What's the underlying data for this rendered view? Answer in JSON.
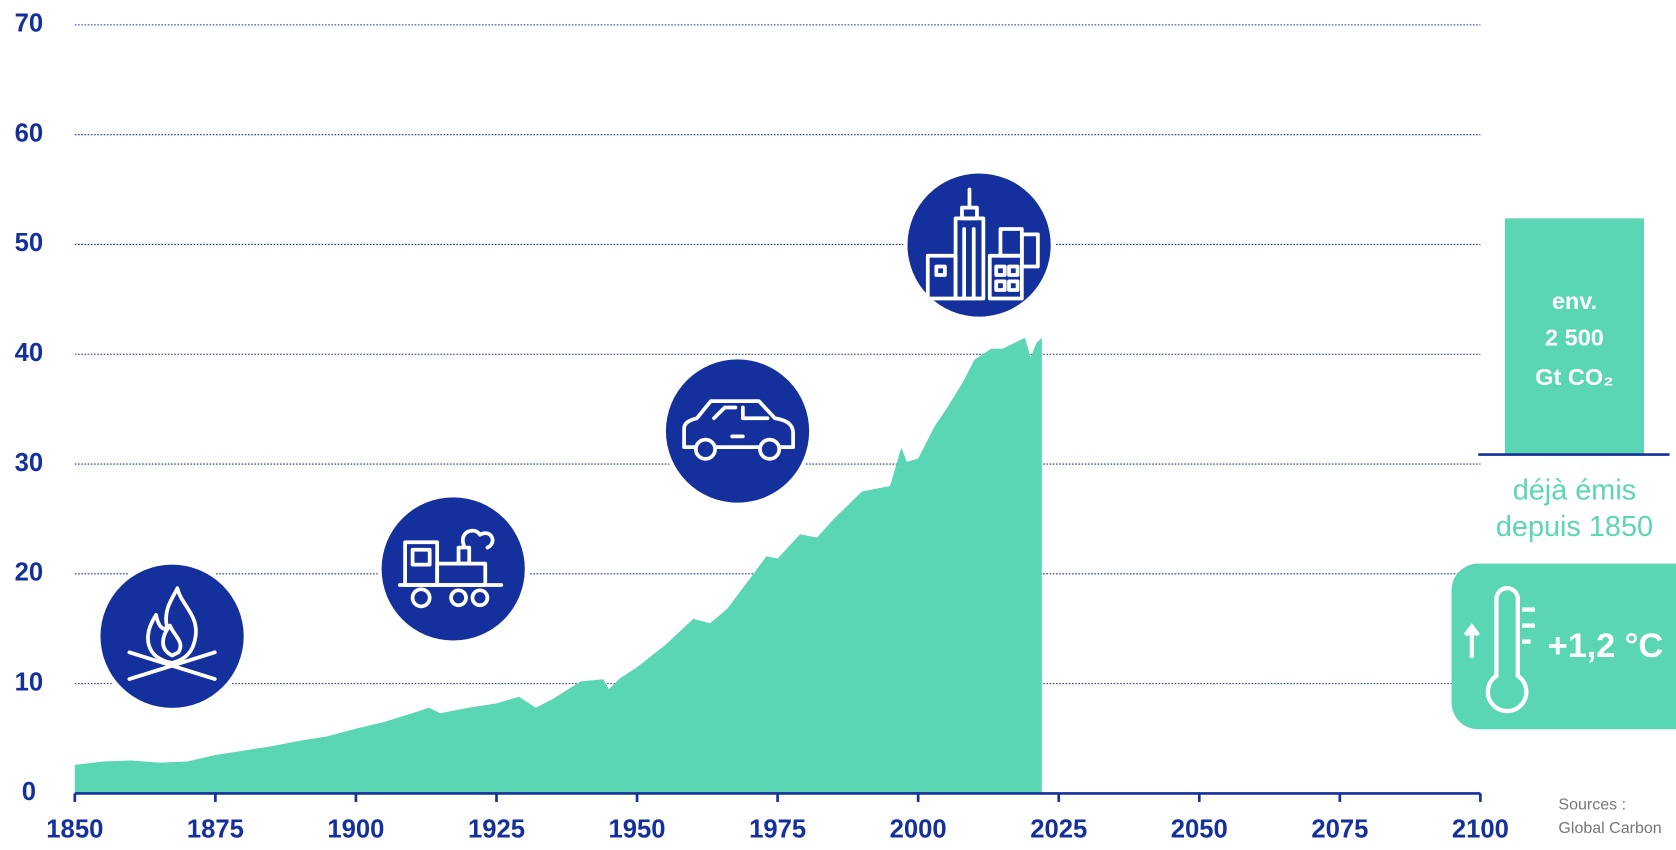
{
  "chart_data": {
    "type": "area",
    "x": [
      1850,
      1855,
      1860,
      1865,
      1870,
      1875,
      1880,
      1885,
      1890,
      1895,
      1900,
      1905,
      1910,
      1913,
      1915,
      1920,
      1925,
      1929,
      1932,
      1935,
      1940,
      1944,
      1945,
      1947,
      1950,
      1955,
      1960,
      1963,
      1966,
      1970,
      1973,
      1975,
      1979,
      1982,
      1985,
      1990,
      1995,
      1997,
      1998,
      2000,
      2003,
      2005,
      2008,
      2010,
      2013,
      2015,
      2019,
      2020,
      2021,
      2022
    ],
    "values": [
      2.6,
      2.9,
      3.0,
      2.8,
      2.9,
      3.5,
      3.9,
      4.3,
      4.8,
      5.2,
      5.9,
      6.5,
      7.3,
      7.8,
      7.3,
      7.8,
      8.2,
      8.8,
      7.8,
      8.6,
      10.2,
      10.4,
      9.5,
      10.5,
      11.5,
      13.5,
      15.9,
      15.5,
      16.8,
      19.5,
      21.6,
      21.4,
      23.6,
      23.3,
      25.0,
      27.5,
      28.0,
      31.5,
      30.2,
      30.5,
      33.5,
      35.0,
      37.5,
      39.5,
      40.5,
      40.5,
      41.5,
      39.7,
      41.0,
      41.5
    ],
    "color": "#5ad6b5",
    "xlim": [
      1850,
      2100
    ],
    "xticks": [
      1850,
      1875,
      1900,
      1925,
      1950,
      1975,
      2000,
      2025,
      2050,
      2075,
      2100
    ],
    "ylim": [
      0,
      70
    ],
    "yticks": [
      0,
      10,
      20,
      30,
      40,
      50,
      60,
      70
    ],
    "grid": true,
    "annotations": {
      "total": [
        "env.",
        "2 500",
        "Gt CO₂"
      ],
      "total_caption": [
        "déjà émis",
        "depuis 1850"
      ],
      "warming": "+1,2 °C",
      "sources": [
        "Sources :",
        "Global Carbon"
      ]
    }
  }
}
